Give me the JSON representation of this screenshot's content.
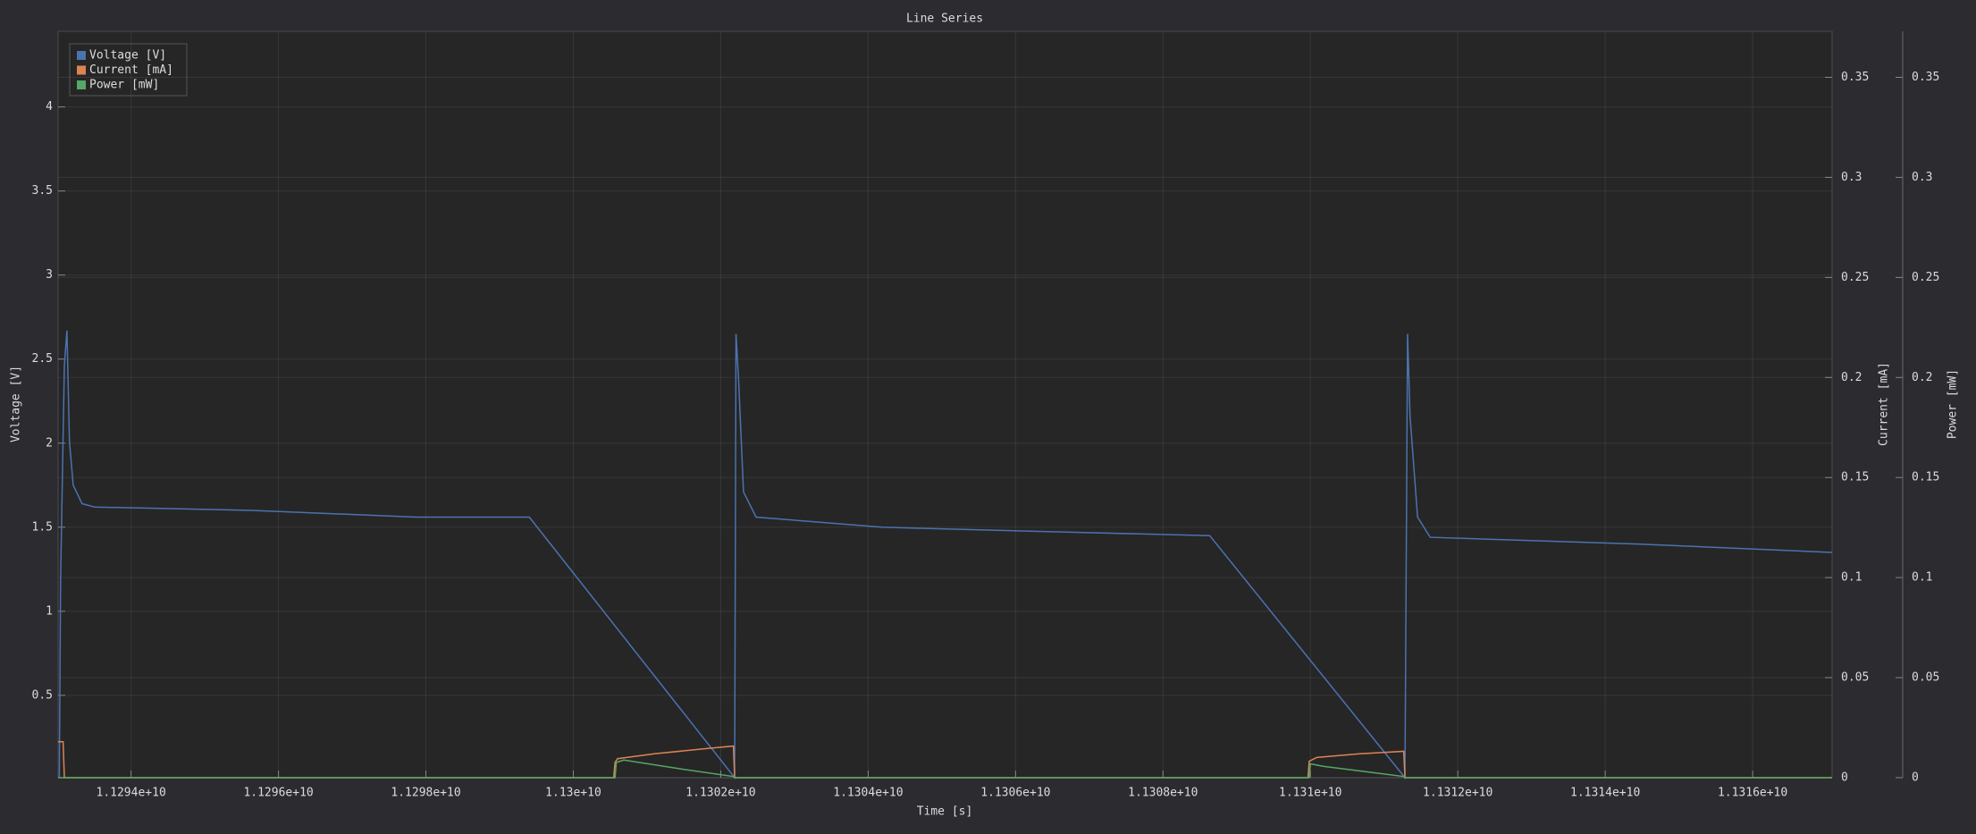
{
  "chart_data": {
    "type": "line",
    "title": "Line Series",
    "x_label": "Time [s]",
    "y_label": "Voltage [V]",
    "y2_label": "Current [mA]",
    "y3_label": "Power [mW]",
    "xlim": [
      11293010000,
      11317078000
    ],
    "xticks": [
      {
        "value": 11294000000,
        "label": "1.1294e+10"
      },
      {
        "value": 11296000000,
        "label": "1.1296e+10"
      },
      {
        "value": 11298000000,
        "label": "1.1298e+10"
      },
      {
        "value": 11300000000,
        "label": "1.13e+10"
      },
      {
        "value": 11302000000,
        "label": "1.1302e+10"
      },
      {
        "value": 11304000000,
        "label": "1.1304e+10"
      },
      {
        "value": 11306000000,
        "label": "1.1306e+10"
      },
      {
        "value": 11308000000,
        "label": "1.1308e+10"
      },
      {
        "value": 11310000000,
        "label": "1.131e+10"
      },
      {
        "value": 11312000000,
        "label": "1.1312e+10"
      },
      {
        "value": 11314000000,
        "label": "1.1314e+10"
      },
      {
        "value": 11316000000,
        "label": "1.1316e+10"
      }
    ],
    "ylim": [
      0.01,
      4.45
    ],
    "yticks": [
      0.5,
      1,
      1.5,
      2,
      2.5,
      3,
      3.5,
      4
    ],
    "y2lim": [
      0,
      0.373
    ],
    "y2ticks": [
      0,
      0.05,
      0.1,
      0.15,
      0.2,
      0.25,
      0.3,
      0.35
    ],
    "y3lim": [
      0,
      0.373
    ],
    "y3ticks": [
      0,
      0.05,
      0.1,
      0.15,
      0.2,
      0.25,
      0.3,
      0.35
    ],
    "grid": true,
    "legend": "upper left",
    "series": [
      {
        "name": "Voltage [V]",
        "color": "#4c72b0",
        "x": [
          11293027000,
          11293044000,
          11293095000,
          11293130000,
          11293164000,
          11293215000,
          11293335000,
          11293506000,
          11295642000,
          11297865000,
          11299403000,
          11302189000,
          11302207000,
          11302241000,
          11302309000,
          11302480000,
          11304189000,
          11306754000,
          11308634000,
          11311283000,
          11311318000,
          11311352000,
          11311454000,
          11311625000,
          11314446000,
          11317078000
        ],
        "values": [
          0.01,
          1.19,
          2.46,
          2.67,
          2.01,
          1.75,
          1.64,
          1.62,
          1.6,
          1.56,
          1.56,
          0.01,
          2.65,
          2.39,
          1.71,
          1.56,
          1.5,
          1.47,
          1.45,
          0.01,
          2.65,
          2.16,
          1.56,
          1.44,
          1.4,
          1.35
        ]
      },
      {
        "name": "Current [mA]",
        "color": "#dd8452",
        "axis": "y2",
        "x": [
          11293010000,
          11293078000,
          11293095000,
          11300548000,
          11300566000,
          11300600000,
          11301113000,
          11301796000,
          11302172000,
          11302189000,
          11309967000,
          11309984000,
          11310087000,
          11310685000,
          11311266000,
          11311283000,
          11317078000
        ],
        "values": [
          0.018,
          0.018,
          0,
          0,
          0.0076,
          0.0095,
          0.012,
          0.0145,
          0.0158,
          0,
          0,
          0.0082,
          0.0101,
          0.012,
          0.0132,
          0,
          0
        ]
      },
      {
        "name": "Power [mW]",
        "color": "#55a868",
        "axis": "y3",
        "x": [
          11293010000,
          11300566000,
          11300583000,
          11300685000,
          11301454000,
          11302172000,
          11302189000,
          11309984000,
          11310001000,
          11310172000,
          11310856000,
          11311266000,
          11311283000,
          11317078000
        ],
        "values": [
          0,
          0,
          0.0076,
          0.0088,
          0.0044,
          0.0006,
          0,
          0,
          0.0069,
          0.0057,
          0.0025,
          0.0006,
          0,
          0
        ]
      }
    ]
  }
}
